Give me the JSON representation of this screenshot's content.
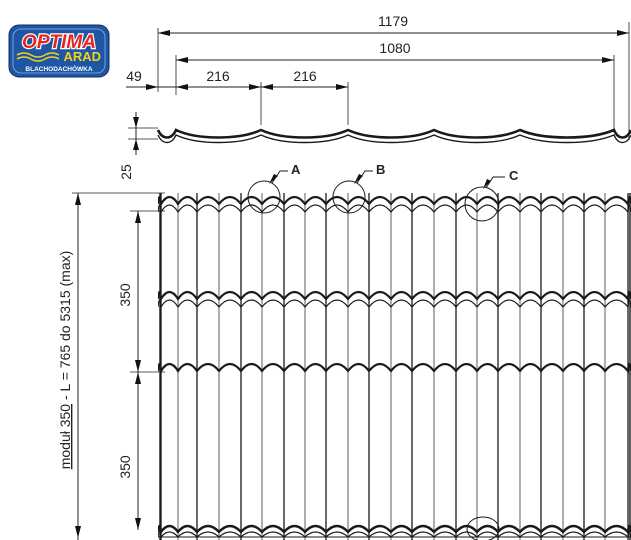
{
  "logo": {
    "brand": "OPTIMA",
    "model": "ARAD",
    "company": "BLACHODACHÓWKA",
    "colors": {
      "blue": "#1e56a6",
      "red": "#e3261f",
      "yellow": "#f7d117",
      "white": "#ffffff"
    }
  },
  "dimensions": {
    "total_width": "1179",
    "effective_width": "1080",
    "edge_offset": "49",
    "pitch_1": "216",
    "pitch_2": "216",
    "thickness": "25",
    "module_1": "350",
    "module_2": "350",
    "overall_prefix": "moduł 350",
    "overall_suffix": " - L = 765 do 5315 (max)"
  },
  "callouts": [
    {
      "label": "A"
    },
    {
      "label": "B"
    },
    {
      "label": "C"
    }
  ],
  "colors": {
    "line": "#1a1a1a",
    "background": "#ffffff"
  }
}
